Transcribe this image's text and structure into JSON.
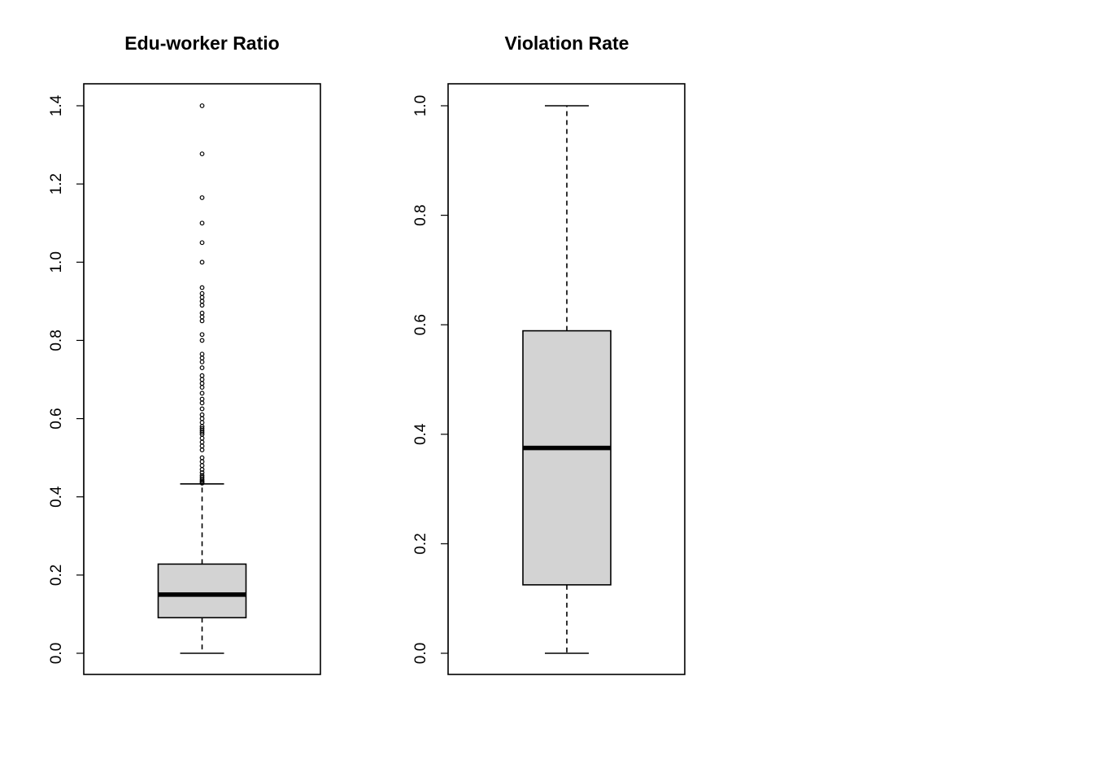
{
  "chart_data": [
    {
      "type": "boxplot",
      "title": "Edu-worker Ratio",
      "xlabel": "",
      "ylabel": "",
      "ylim": [
        0,
        1.4
      ],
      "yticks": [
        0.0,
        0.2,
        0.4,
        0.6,
        0.8,
        1.0,
        1.2,
        1.4
      ],
      "ytick_labels": [
        "0.0",
        "0.2",
        "0.4",
        "0.6",
        "0.8",
        "1.0",
        "1.2",
        "1.4"
      ],
      "box": {
        "min": 0.0,
        "q1": 0.091,
        "median": 0.15,
        "q3": 0.228,
        "whisker_high": 0.433
      },
      "outliers": [
        0.435,
        0.438,
        0.441,
        0.445,
        0.45,
        0.455,
        0.462,
        0.47,
        0.48,
        0.49,
        0.5,
        0.52,
        0.53,
        0.54,
        0.55,
        0.56,
        0.565,
        0.57,
        0.575,
        0.58,
        0.59,
        0.6,
        0.61,
        0.625,
        0.64,
        0.65,
        0.665,
        0.68,
        0.69,
        0.7,
        0.71,
        0.73,
        0.745,
        0.755,
        0.765,
        0.8,
        0.815,
        0.85,
        0.86,
        0.87,
        0.89,
        0.9,
        0.91,
        0.92,
        0.935,
        1.0,
        1.05,
        1.1,
        1.165,
        1.277,
        1.4
      ]
    },
    {
      "type": "boxplot",
      "title": "Violation Rate",
      "xlabel": "",
      "ylabel": "",
      "ylim": [
        0,
        1.0
      ],
      "yticks": [
        0.0,
        0.2,
        0.4,
        0.6,
        0.8,
        1.0
      ],
      "ytick_labels": [
        "0.0",
        "0.2",
        "0.4",
        "0.6",
        "0.8",
        "1.0"
      ],
      "box": {
        "min": 0.0,
        "q1": 0.125,
        "median": 0.375,
        "q3": 0.589,
        "whisker_high": 1.0
      },
      "outliers": []
    }
  ],
  "colors": {
    "box_fill": "#d3d3d3",
    "stroke": "#000000",
    "background": "#ffffff"
  }
}
